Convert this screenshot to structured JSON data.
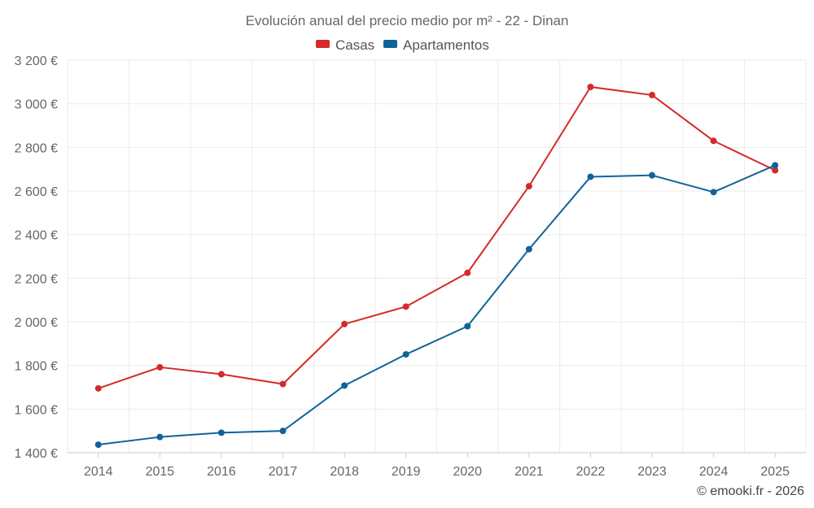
{
  "chart_data": {
    "type": "line",
    "title": "Evolución anual del precio medio por m² - 22 - Dinan",
    "categories": [
      "2014",
      "2015",
      "2016",
      "2017",
      "2018",
      "2019",
      "2020",
      "2021",
      "2022",
      "2023",
      "2024",
      "2025"
    ],
    "series": [
      {
        "name": "Casas",
        "color": "#d42a2a",
        "values": [
          1695,
          1792,
          1760,
          1715,
          1990,
          2070,
          2225,
          2622,
          3077,
          3040,
          2830,
          2695
        ]
      },
      {
        "name": "Apartamentos",
        "color": "#0e6399",
        "values": [
          1437,
          1472,
          1492,
          1500,
          1708,
          1851,
          1980,
          2333,
          2665,
          2672,
          2595,
          2718
        ]
      }
    ],
    "yticks": [
      1400,
      1600,
      1800,
      2000,
      2200,
      2400,
      2600,
      2800,
      3000,
      3200
    ],
    "ytick_labels": [
      "1 400 €",
      "1 600 €",
      "1 800 €",
      "2 000 €",
      "2 200 €",
      "2 400 €",
      "2 600 €",
      "2 800 €",
      "3 000 €",
      "3 200 €"
    ],
    "ylim": [
      1400,
      3200
    ],
    "grid": true,
    "legend_position": "top-center",
    "xlabel": "",
    "ylabel": "",
    "credit": "© emooki.fr - 2026"
  }
}
